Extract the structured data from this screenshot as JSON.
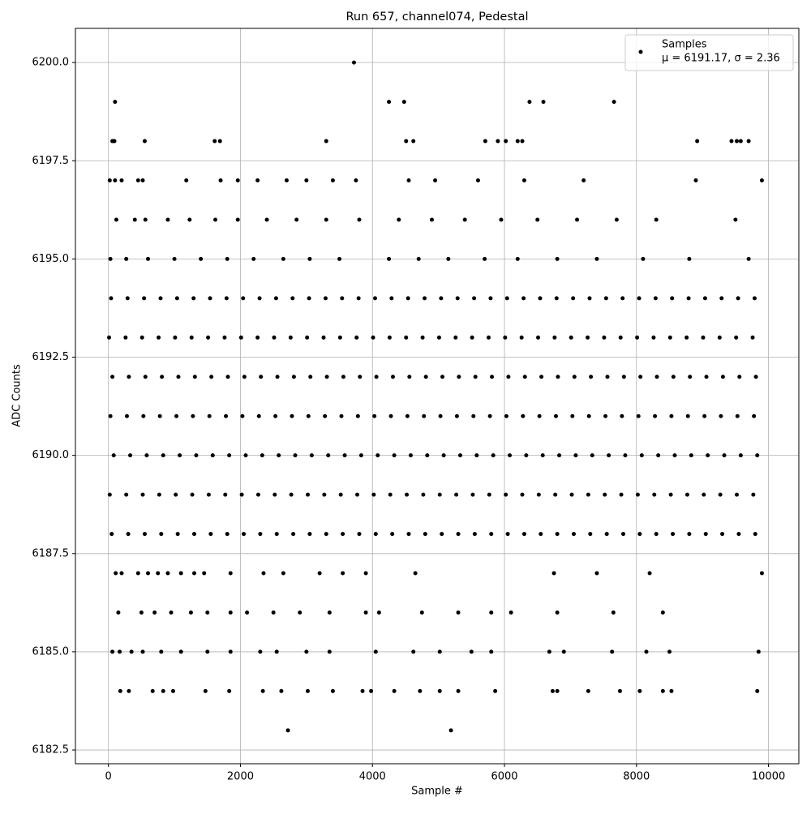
{
  "chart_data": {
    "type": "scatter",
    "title": "Run 657, channel074, Pedestal",
    "xlabel": "Sample #",
    "ylabel": "ADC Counts",
    "legend_note": "μ = 6191.17, σ = 2.36",
    "legend_loc": "upper right",
    "grid": true,
    "xlim": [
      -500,
      10460
    ],
    "ylim": [
      6182.15,
      6200.87
    ],
    "xticks": [
      0,
      2000,
      4000,
      6000,
      8000,
      10000
    ],
    "yticks": [
      6182.5,
      {
        "value": 6185,
        "label": "6185.0"
      },
      6187.5,
      {
        "value": 6190,
        "label": "6190.0"
      },
      6192.5,
      {
        "value": 6195,
        "label": "6195.0"
      },
      6197.5,
      {
        "value": 6200,
        "label": "6200.0"
      }
    ],
    "x": [
      3720,
      100,
      4250,
      4480,
      6380,
      6590,
      7660,
      60,
      90,
      550,
      1610,
      1690,
      3300,
      4510,
      4620,
      5710,
      5900,
      6020,
      6200,
      6270,
      8920,
      9440,
      9520,
      9580,
      9700,
      20,
      100,
      200,
      450,
      520,
      1180,
      1700,
      1960,
      2260,
      2700,
      3000,
      3400,
      3750,
      4550,
      4950,
      5600,
      6300,
      7200,
      8900,
      9900,
      120,
      400,
      560,
      900,
      1230,
      1620,
      1960,
      2400,
      2850,
      3300,
      3800,
      4400,
      4900,
      5400,
      5950,
      6500,
      7100,
      7700,
      8300,
      9500,
      30,
      270,
      600,
      1000,
      1400,
      1800,
      2200,
      2650,
      3050,
      3500,
      4250,
      4700,
      5150,
      5700,
      6200,
      6800,
      7400,
      8100,
      8800,
      9700,
      40,
      290,
      540,
      790,
      1040,
      1290,
      1540,
      1790,
      2040,
      2290,
      2540,
      2790,
      3040,
      3290,
      3540,
      3790,
      4040,
      4290,
      4540,
      4790,
      5040,
      5290,
      5540,
      5790,
      6040,
      6290,
      6540,
      6790,
      7040,
      7290,
      7540,
      7790,
      8040,
      8290,
      8540,
      8790,
      9040,
      9290,
      9540,
      9790,
      10,
      260,
      510,
      760,
      1010,
      1260,
      1510,
      1760,
      2010,
      2260,
      2510,
      2760,
      3010,
      3260,
      3510,
      3760,
      4010,
      4260,
      4510,
      4760,
      5010,
      5260,
      5510,
      5760,
      6010,
      6260,
      6510,
      6760,
      7010,
      7260,
      7510,
      7760,
      8010,
      8260,
      8510,
      8760,
      9010,
      9260,
      9510,
      9760,
      60,
      310,
      560,
      810,
      1060,
      1310,
      1560,
      1810,
      2060,
      2310,
      2560,
      2810,
      3060,
      3310,
      3560,
      3810,
      4060,
      4310,
      4560,
      4810,
      5060,
      5310,
      5560,
      5810,
      6060,
      6310,
      6560,
      6810,
      7060,
      7310,
      7560,
      7810,
      8060,
      8310,
      8560,
      8810,
      9060,
      9310,
      9560,
      9810,
      30,
      280,
      530,
      780,
      1030,
      1280,
      1530,
      1780,
      2030,
      2280,
      2530,
      2780,
      3030,
      3280,
      3530,
      3780,
      4030,
      4280,
      4530,
      4780,
      5030,
      5280,
      5530,
      5780,
      6030,
      6280,
      6530,
      6780,
      7030,
      7280,
      7530,
      7780,
      8030,
      8280,
      8530,
      8780,
      9030,
      9280,
      9530,
      9780,
      80,
      330,
      580,
      830,
      1080,
      1330,
      1580,
      1830,
      2080,
      2330,
      2580,
      2830,
      3080,
      3330,
      3580,
      3830,
      4080,
      4330,
      4580,
      4830,
      5080,
      5330,
      5580,
      5830,
      6080,
      6330,
      6580,
      6830,
      7080,
      7330,
      7580,
      7830,
      8080,
      8330,
      8580,
      8830,
      9080,
      9330,
      9580,
      9830,
      20,
      270,
      520,
      770,
      1020,
      1270,
      1520,
      1770,
      2020,
      2270,
      2520,
      2770,
      3020,
      3270,
      3520,
      3770,
      4020,
      4270,
      4520,
      4770,
      5020,
      5270,
      5520,
      5770,
      6020,
      6270,
      6520,
      6770,
      7020,
      7270,
      7520,
      7770,
      8020,
      8270,
      8520,
      8770,
      9020,
      9270,
      9520,
      9770,
      50,
      300,
      550,
      800,
      1050,
      1300,
      1550,
      1800,
      2050,
      2300,
      2550,
      2800,
      3050,
      3300,
      3550,
      3800,
      4050,
      4300,
      4550,
      4800,
      5050,
      5300,
      5550,
      5800,
      6050,
      6300,
      6550,
      6800,
      7050,
      7300,
      7550,
      7800,
      8050,
      8300,
      8550,
      8800,
      9050,
      9300,
      9550,
      9800,
      110,
      200,
      450,
      600,
      750,
      900,
      1100,
      1300,
      1450,
      1850,
      2350,
      2650,
      3200,
      3550,
      3900,
      4650,
      6750,
      7400,
      8200,
      9900,
      150,
      500,
      700,
      950,
      1250,
      1500,
      1850,
      2100,
      2500,
      2900,
      3350,
      3900,
      4100,
      4750,
      5300,
      5800,
      6100,
      6800,
      7650,
      8400,
      60,
      170,
      350,
      520,
      800,
      1100,
      1500,
      1850,
      2300,
      2550,
      3000,
      3350,
      4050,
      4620,
      5020,
      5500,
      5800,
      6680,
      6900,
      7630,
      8150,
      8500,
      9850,
      180,
      310,
      670,
      830,
      980,
      1470,
      1830,
      2340,
      2620,
      3020,
      3400,
      3850,
      3980,
      4330,
      4720,
      5020,
      5300,
      5860,
      6730,
      6800,
      7270,
      7750,
      8050,
      8400,
      8530,
      9830,
      2720,
      5190
    ],
    "series": [
      {
        "name": "Samples",
        "color": "#000000",
        "values": [
          6200,
          6199,
          6199,
          6199,
          6199,
          6199,
          6199,
          6198,
          6198,
          6198,
          6198,
          6198,
          6198,
          6198,
          6198,
          6198,
          6198,
          6198,
          6198,
          6198,
          6198,
          6198,
          6198,
          6198,
          6198,
          6197,
          6197,
          6197,
          6197,
          6197,
          6197,
          6197,
          6197,
          6197,
          6197,
          6197,
          6197,
          6197,
          6197,
          6197,
          6197,
          6197,
          6197,
          6197,
          6197,
          6196,
          6196,
          6196,
          6196,
          6196,
          6196,
          6196,
          6196,
          6196,
          6196,
          6196,
          6196,
          6196,
          6196,
          6196,
          6196,
          6196,
          6196,
          6196,
          6196,
          6195,
          6195,
          6195,
          6195,
          6195,
          6195,
          6195,
          6195,
          6195,
          6195,
          6195,
          6195,
          6195,
          6195,
          6195,
          6195,
          6195,
          6195,
          6195,
          6195,
          6194,
          6194,
          6194,
          6194,
          6194,
          6194,
          6194,
          6194,
          6194,
          6194,
          6194,
          6194,
          6194,
          6194,
          6194,
          6194,
          6194,
          6194,
          6194,
          6194,
          6194,
          6194,
          6194,
          6194,
          6194,
          6194,
          6194,
          6194,
          6194,
          6194,
          6194,
          6194,
          6194,
          6194,
          6194,
          6194,
          6194,
          6194,
          6194,
          6194,
          6193,
          6193,
          6193,
          6193,
          6193,
          6193,
          6193,
          6193,
          6193,
          6193,
          6193,
          6193,
          6193,
          6193,
          6193,
          6193,
          6193,
          6193,
          6193,
          6193,
          6193,
          6193,
          6193,
          6193,
          6193,
          6193,
          6193,
          6193,
          6193,
          6193,
          6193,
          6193,
          6193,
          6193,
          6193,
          6193,
          6193,
          6193,
          6193,
          6193,
          6192,
          6192,
          6192,
          6192,
          6192,
          6192,
          6192,
          6192,
          6192,
          6192,
          6192,
          6192,
          6192,
          6192,
          6192,
          6192,
          6192,
          6192,
          6192,
          6192,
          6192,
          6192,
          6192,
          6192,
          6192,
          6192,
          6192,
          6192,
          6192,
          6192,
          6192,
          6192,
          6192,
          6192,
          6192,
          6192,
          6192,
          6192,
          6192,
          6192,
          6191,
          6191,
          6191,
          6191,
          6191,
          6191,
          6191,
          6191,
          6191,
          6191,
          6191,
          6191,
          6191,
          6191,
          6191,
          6191,
          6191,
          6191,
          6191,
          6191,
          6191,
          6191,
          6191,
          6191,
          6191,
          6191,
          6191,
          6191,
          6191,
          6191,
          6191,
          6191,
          6191,
          6191,
          6191,
          6191,
          6191,
          6191,
          6191,
          6191,
          6190,
          6190,
          6190,
          6190,
          6190,
          6190,
          6190,
          6190,
          6190,
          6190,
          6190,
          6190,
          6190,
          6190,
          6190,
          6190,
          6190,
          6190,
          6190,
          6190,
          6190,
          6190,
          6190,
          6190,
          6190,
          6190,
          6190,
          6190,
          6190,
          6190,
          6190,
          6190,
          6190,
          6190,
          6190,
          6190,
          6190,
          6190,
          6190,
          6190,
          6189,
          6189,
          6189,
          6189,
          6189,
          6189,
          6189,
          6189,
          6189,
          6189,
          6189,
          6189,
          6189,
          6189,
          6189,
          6189,
          6189,
          6189,
          6189,
          6189,
          6189,
          6189,
          6189,
          6189,
          6189,
          6189,
          6189,
          6189,
          6189,
          6189,
          6189,
          6189,
          6189,
          6189,
          6189,
          6189,
          6189,
          6189,
          6189,
          6189,
          6188,
          6188,
          6188,
          6188,
          6188,
          6188,
          6188,
          6188,
          6188,
          6188,
          6188,
          6188,
          6188,
          6188,
          6188,
          6188,
          6188,
          6188,
          6188,
          6188,
          6188,
          6188,
          6188,
          6188,
          6188,
          6188,
          6188,
          6188,
          6188,
          6188,
          6188,
          6188,
          6188,
          6188,
          6188,
          6188,
          6188,
          6188,
          6188,
          6188,
          6187,
          6187,
          6187,
          6187,
          6187,
          6187,
          6187,
          6187,
          6187,
          6187,
          6187,
          6187,
          6187,
          6187,
          6187,
          6187,
          6187,
          6187,
          6187,
          6187,
          6186,
          6186,
          6186,
          6186,
          6186,
          6186,
          6186,
          6186,
          6186,
          6186,
          6186,
          6186,
          6186,
          6186,
          6186,
          6186,
          6186,
          6186,
          6186,
          6186,
          6185,
          6185,
          6185,
          6185,
          6185,
          6185,
          6185,
          6185,
          6185,
          6185,
          6185,
          6185,
          6185,
          6185,
          6185,
          6185,
          6185,
          6185,
          6185,
          6185,
          6185,
          6185,
          6185,
          6184,
          6184,
          6184,
          6184,
          6184,
          6184,
          6184,
          6184,
          6184,
          6184,
          6184,
          6184,
          6184,
          6184,
          6184,
          6184,
          6184,
          6184,
          6184,
          6184,
          6184,
          6184,
          6184,
          6184,
          6184,
          6184,
          6183,
          6183
        ]
      }
    ]
  }
}
